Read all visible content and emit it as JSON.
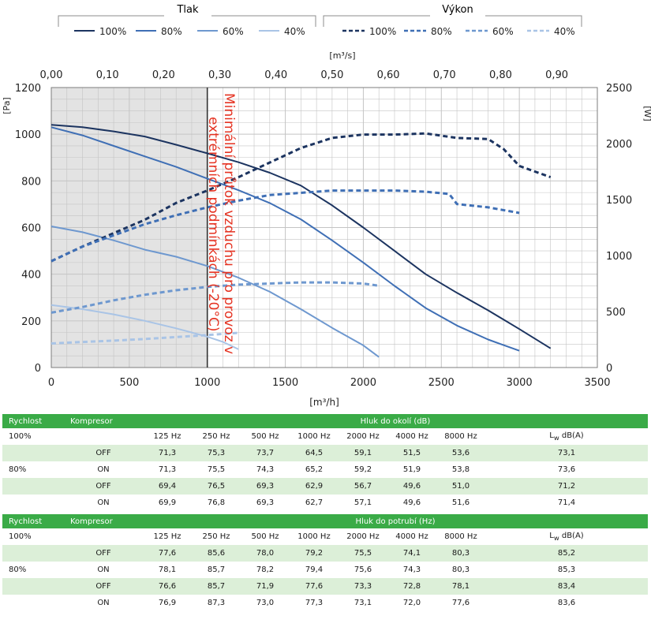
{
  "legend_left": {
    "title": "Tlak",
    "items": [
      "100%",
      "80%",
      "60%",
      "40%"
    ]
  },
  "legend_right": {
    "title": "Výkon",
    "items": [
      "100%",
      "80%",
      "60%",
      "40%"
    ]
  },
  "chart_data": {
    "type": "line",
    "top_axis_label": "[m³/s]",
    "top_ticks": [
      "0,00",
      "0,10",
      "0,20",
      "0,30",
      "0,40",
      "0,50",
      "0,60",
      "0,70",
      "0,80",
      "0,90"
    ],
    "xlabel": "[m³/h]",
    "x_ticks": [
      "0",
      "500",
      "1000",
      "1500",
      "2000",
      "2500",
      "3000",
      "3500"
    ],
    "xlim": [
      0,
      3500
    ],
    "ylabel_left": "[Pa]",
    "y_left_ticks": [
      "0",
      "200",
      "400",
      "600",
      "800",
      "1000",
      "1200"
    ],
    "ylim_left": [
      0,
      1200
    ],
    "ylabel_right": "[W]",
    "y_right_ticks": [
      "0",
      "500",
      "1000",
      "1500",
      "2000",
      "2500"
    ],
    "ylim_right": [
      0,
      2500
    ],
    "grid": true,
    "shaded_region_x": [
      0,
      1000
    ],
    "annotation": "Minimální průtok vzduchu pro provoz v extrémních podmínkách (-20°C)",
    "series_pressure": [
      {
        "name": "100%",
        "color": "#1c3460",
        "points": [
          [
            0,
            1040
          ],
          [
            200,
            1030
          ],
          [
            400,
            1012
          ],
          [
            600,
            990
          ],
          [
            800,
            955
          ],
          [
            1000,
            918
          ],
          [
            1200,
            880
          ],
          [
            1400,
            835
          ],
          [
            1600,
            780
          ],
          [
            1800,
            695
          ],
          [
            2000,
            600
          ],
          [
            2200,
            500
          ],
          [
            2400,
            400
          ],
          [
            2600,
            320
          ],
          [
            2800,
            245
          ],
          [
            3000,
            165
          ],
          [
            3200,
            82
          ]
        ]
      },
      {
        "name": "80%",
        "color": "#3f6fb5",
        "points": [
          [
            0,
            1030
          ],
          [
            200,
            995
          ],
          [
            400,
            950
          ],
          [
            600,
            905
          ],
          [
            800,
            860
          ],
          [
            1000,
            810
          ],
          [
            1200,
            760
          ],
          [
            1400,
            705
          ],
          [
            1600,
            635
          ],
          [
            1800,
            545
          ],
          [
            2000,
            450
          ],
          [
            2200,
            350
          ],
          [
            2400,
            255
          ],
          [
            2600,
            180
          ],
          [
            2800,
            120
          ],
          [
            3000,
            72
          ]
        ]
      },
      {
        "name": "60%",
        "color": "#6e98cf",
        "points": [
          [
            0,
            605
          ],
          [
            200,
            580
          ],
          [
            400,
            545
          ],
          [
            600,
            505
          ],
          [
            800,
            475
          ],
          [
            1000,
            435
          ],
          [
            1200,
            385
          ],
          [
            1400,
            325
          ],
          [
            1600,
            250
          ],
          [
            1800,
            170
          ],
          [
            2000,
            95
          ],
          [
            2100,
            45
          ]
        ]
      },
      {
        "name": "40%",
        "color": "#a9c4e6",
        "points": [
          [
            0,
            268
          ],
          [
            200,
            250
          ],
          [
            400,
            228
          ],
          [
            600,
            200
          ],
          [
            800,
            168
          ],
          [
            1000,
            132
          ],
          [
            1100,
            110
          ],
          [
            1200,
            78
          ]
        ]
      }
    ],
    "series_power": [
      {
        "name": "100%",
        "color": "#1c3460",
        "points": [
          [
            0,
            950
          ],
          [
            200,
            1080
          ],
          [
            400,
            1200
          ],
          [
            600,
            1320
          ],
          [
            800,
            1470
          ],
          [
            1000,
            1580
          ],
          [
            1200,
            1700
          ],
          [
            1400,
            1830
          ],
          [
            1600,
            1960
          ],
          [
            1800,
            2050
          ],
          [
            2000,
            2080
          ],
          [
            2200,
            2080
          ],
          [
            2400,
            2090
          ],
          [
            2600,
            2050
          ],
          [
            2800,
            2040
          ],
          [
            2900,
            1950
          ],
          [
            3000,
            1800
          ],
          [
            3200,
            1700
          ]
        ]
      },
      {
        "name": "80%",
        "color": "#3f6fb5",
        "points": [
          [
            0,
            950
          ],
          [
            200,
            1080
          ],
          [
            400,
            1180
          ],
          [
            600,
            1280
          ],
          [
            800,
            1360
          ],
          [
            1000,
            1430
          ],
          [
            1200,
            1490
          ],
          [
            1400,
            1540
          ],
          [
            1600,
            1560
          ],
          [
            1800,
            1580
          ],
          [
            2000,
            1580
          ],
          [
            2200,
            1580
          ],
          [
            2400,
            1570
          ],
          [
            2550,
            1550
          ],
          [
            2600,
            1460
          ],
          [
            2800,
            1430
          ],
          [
            3000,
            1380
          ]
        ]
      },
      {
        "name": "60%",
        "color": "#6e98cf",
        "points": [
          [
            0,
            490
          ],
          [
            200,
            540
          ],
          [
            400,
            600
          ],
          [
            600,
            650
          ],
          [
            800,
            690
          ],
          [
            1000,
            720
          ],
          [
            1200,
            740
          ],
          [
            1400,
            750
          ],
          [
            1600,
            760
          ],
          [
            1800,
            760
          ],
          [
            2000,
            750
          ],
          [
            2100,
            730
          ]
        ]
      },
      {
        "name": "40%",
        "color": "#a9c4e6",
        "points": [
          [
            0,
            215
          ],
          [
            200,
            228
          ],
          [
            400,
            240
          ],
          [
            600,
            255
          ],
          [
            800,
            272
          ],
          [
            1000,
            290
          ],
          [
            1200,
            310
          ]
        ]
      }
    ]
  },
  "tables": [
    {
      "headers": {
        "speed": "Rychlost",
        "compressor": "Kompresor",
        "title": "Hluk do okolí (dB)"
      },
      "bands": [
        "125 Hz",
        "250 Hz",
        "500 Hz",
        "1000 Hz",
        "2000 Hz",
        "4000 Hz",
        "8000 Hz"
      ],
      "lw_main": "L",
      "lw_sub": "w",
      "lw_unit": " dB(A)",
      "speed1": "100%",
      "speed2": "80%",
      "rows": [
        {
          "comp": "OFF",
          "vals": [
            "71,3",
            "75,3",
            "73,7",
            "64,5",
            "59,1",
            "51,5",
            "53,6"
          ],
          "lw": "73,1"
        },
        {
          "comp": "ON",
          "vals": [
            "71,3",
            "75,5",
            "74,3",
            "65,2",
            "59,2",
            "51,9",
            "53,8"
          ],
          "lw": "73,6"
        },
        {
          "comp": "OFF",
          "vals": [
            "69,4",
            "76,5",
            "69,3",
            "62,9",
            "56,7",
            "49,6",
            "51,0"
          ],
          "lw": "71,2"
        },
        {
          "comp": "ON",
          "vals": [
            "69,9",
            "76,8",
            "69,3",
            "62,7",
            "57,1",
            "49,6",
            "51,6"
          ],
          "lw": "71,4"
        }
      ]
    },
    {
      "headers": {
        "speed": "Rychlost",
        "compressor": "Kompresor",
        "title": "Hluk do potrubí (Hz)"
      },
      "bands": [
        "125 Hz",
        "250 Hz",
        "500 Hz",
        "1000 Hz",
        "2000 Hz",
        "4000 Hz",
        "8000 Hz"
      ],
      "lw_main": "L",
      "lw_sub": "w",
      "lw_unit": " dB(A)",
      "speed1": "100%",
      "speed2": "80%",
      "rows": [
        {
          "comp": "OFF",
          "vals": [
            "77,6",
            "85,6",
            "78,0",
            "79,2",
            "75,5",
            "74,1",
            "80,3"
          ],
          "lw": "85,2"
        },
        {
          "comp": "ON",
          "vals": [
            "78,1",
            "85,7",
            "78,2",
            "79,4",
            "75,6",
            "74,3",
            "80,3"
          ],
          "lw": "85,3"
        },
        {
          "comp": "OFF",
          "vals": [
            "76,6",
            "85,7",
            "71,9",
            "77,6",
            "73,3",
            "72,8",
            "78,1"
          ],
          "lw": "83,4"
        },
        {
          "comp": "ON",
          "vals": [
            "76,9",
            "87,3",
            "73,0",
            "77,3",
            "73,1",
            "72,0",
            "77,6"
          ],
          "lw": "83,6"
        }
      ]
    }
  ]
}
